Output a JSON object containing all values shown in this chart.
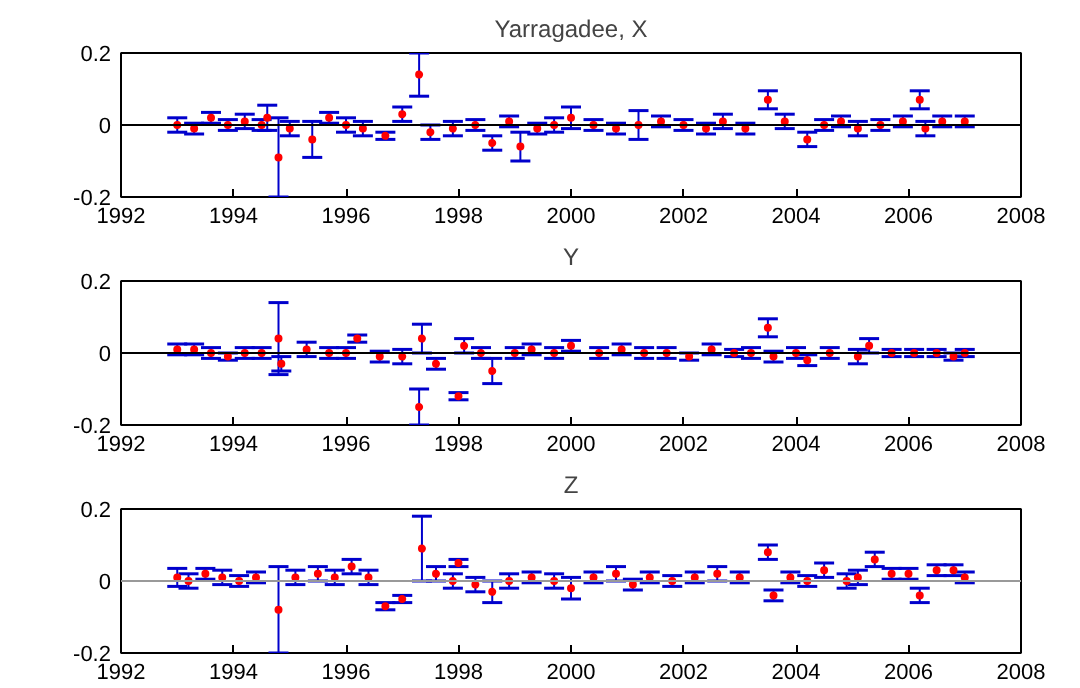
{
  "chart_data": [
    {
      "type": "scatter",
      "title": "Yarragadee, X",
      "marker": "circle",
      "xlim": [
        1992,
        2008
      ],
      "ylim": [
        -0.2,
        0.2
      ],
      "xticks": [
        1992,
        1994,
        1996,
        1998,
        2000,
        2002,
        2004,
        2006,
        2008
      ],
      "yticks": [
        -0.2,
        0,
        0.2
      ],
      "ref_lines": [
        {
          "axis": "y",
          "value": 0,
          "color": "#000000"
        }
      ],
      "x": [
        1993.0,
        1993.3,
        1993.6,
        1993.9,
        1994.2,
        1994.5,
        1994.6,
        1994.8,
        1995.0,
        1995.4,
        1995.7,
        1996.0,
        1996.3,
        1996.7,
        1997.0,
        1997.3,
        1997.5,
        1997.9,
        1998.3,
        1998.6,
        1998.9,
        1999.1,
        1999.4,
        1999.7,
        2000.0,
        2000.4,
        2000.8,
        2001.2,
        2001.6,
        2002.0,
        2002.4,
        2002.7,
        2003.1,
        2003.5,
        2003.8,
        2004.2,
        2004.5,
        2004.8,
        2005.1,
        2005.5,
        2005.9,
        2006.2,
        2006.3,
        2006.6,
        2007.0
      ],
      "series": [
        {
          "color": "#ff0000",
          "values": [
            0.0,
            -0.01,
            0.02,
            0.0,
            0.01,
            0.0,
            0.02,
            -0.09,
            -0.01,
            -0.04,
            0.02,
            0.0,
            -0.01,
            -0.03,
            0.03,
            0.14,
            -0.02,
            -0.01,
            0.0,
            -0.05,
            0.01,
            -0.06,
            -0.01,
            0.0,
            0.02,
            0.0,
            -0.01,
            0.0,
            0.01,
            0.0,
            -0.01,
            0.01,
            -0.01,
            0.07,
            0.01,
            -0.04,
            0.0,
            0.01,
            -0.01,
            0.0,
            0.01,
            0.07,
            -0.01,
            0.01,
            0.01
          ],
          "errors": [
            0.02,
            0.015,
            0.015,
            0.015,
            0.02,
            0.015,
            0.035,
            0.11,
            0.02,
            0.05,
            0.015,
            0.02,
            0.02,
            0.01,
            0.02,
            0.06,
            0.02,
            0.02,
            0.015,
            0.02,
            0.015,
            0.04,
            0.015,
            0.02,
            0.03,
            0.015,
            0.015,
            0.04,
            0.015,
            0.015,
            0.015,
            0.02,
            0.015,
            0.025,
            0.02,
            0.02,
            0.015,
            0.015,
            0.02,
            0.015,
            0.015,
            0.025,
            0.02,
            0.015,
            0.015
          ]
        }
      ]
    },
    {
      "type": "scatter",
      "title": "Y",
      "marker": "circle",
      "xlim": [
        1992,
        2008
      ],
      "ylim": [
        -0.2,
        0.2
      ],
      "xticks": [
        1992,
        1994,
        1996,
        1998,
        2000,
        2002,
        2004,
        2006,
        2008
      ],
      "yticks": [
        -0.2,
        0,
        0.2
      ],
      "ref_lines": [
        {
          "axis": "y",
          "value": 0,
          "color": "#000000"
        }
      ],
      "x": [
        1993.0,
        1993.3,
        1993.6,
        1993.9,
        1994.2,
        1994.5,
        1994.8,
        1994.85,
        1995.3,
        1995.7,
        1996.0,
        1996.2,
        1996.6,
        1997.0,
        1997.3,
        1997.35,
        1997.6,
        1998.0,
        1998.1,
        1998.4,
        1998.6,
        1999.0,
        1999.3,
        1999.7,
        2000.0,
        2000.5,
        2000.9,
        2001.3,
        2001.7,
        2002.1,
        2002.5,
        2002.9,
        2003.2,
        2003.5,
        2003.6,
        2004.0,
        2004.2,
        2004.6,
        2005.1,
        2005.3,
        2005.7,
        2006.1,
        2006.5,
        2006.8,
        2007.0
      ],
      "series": [
        {
          "color": "#ff0000",
          "values": [
            0.01,
            0.01,
            0.0,
            -0.01,
            0.0,
            0.0,
            0.04,
            -0.03,
            0.01,
            0.0,
            0.0,
            0.04,
            -0.01,
            -0.01,
            -0.15,
            0.04,
            -0.03,
            -0.12,
            0.02,
            0.0,
            -0.05,
            0.0,
            0.01,
            0.0,
            0.02,
            0.0,
            0.01,
            0.0,
            0.0,
            -0.01,
            0.01,
            0.0,
            0.0,
            0.07,
            -0.01,
            0.0,
            -0.02,
            0.0,
            -0.01,
            0.02,
            0.0,
            0.0,
            0.0,
            -0.01,
            0.0
          ],
          "errors": [
            0.015,
            0.015,
            0.015,
            0.01,
            0.015,
            0.015,
            0.1,
            0.02,
            0.02,
            0.015,
            0.015,
            0.01,
            0.015,
            0.02,
            0.05,
            0.04,
            0.015,
            0.01,
            0.02,
            0.015,
            0.035,
            0.015,
            0.015,
            0.015,
            0.015,
            0.015,
            0.015,
            0.015,
            0.015,
            0.01,
            0.015,
            0.01,
            0.015,
            0.025,
            0.015,
            0.015,
            0.015,
            0.015,
            0.02,
            0.02,
            0.01,
            0.01,
            0.01,
            0.01,
            0.01
          ]
        }
      ]
    },
    {
      "type": "scatter",
      "title": "Z",
      "marker": "circle",
      "xlim": [
        1992,
        2008
      ],
      "ylim": [
        -0.2,
        0.2
      ],
      "xticks": [
        1992,
        1994,
        1996,
        1998,
        2000,
        2002,
        2004,
        2006,
        2008
      ],
      "yticks": [
        -0.2,
        0,
        0.2
      ],
      "ref_lines": [
        {
          "axis": "y",
          "value": 0,
          "color": "#999999"
        }
      ],
      "x": [
        1993.0,
        1993.2,
        1993.5,
        1993.8,
        1994.1,
        1994.4,
        1994.8,
        1995.1,
        1995.5,
        1995.8,
        1996.1,
        1996.4,
        1996.7,
        1997.0,
        1997.35,
        1997.6,
        1997.9,
        1998.0,
        1998.3,
        1998.6,
        1998.9,
        1999.3,
        1999.7,
        2000.0,
        2000.4,
        2000.8,
        2001.1,
        2001.4,
        2001.8,
        2002.2,
        2002.6,
        2003.0,
        2003.5,
        2003.6,
        2003.9,
        2004.2,
        2004.5,
        2004.9,
        2005.1,
        2005.4,
        2005.7,
        2006.0,
        2006.2,
        2006.5,
        2006.8,
        2007.0
      ],
      "series": [
        {
          "color": "#ff0000",
          "values": [
            0.01,
            0.0,
            0.02,
            0.01,
            0.0,
            0.01,
            -0.08,
            0.01,
            0.02,
            0.01,
            0.04,
            0.01,
            -0.07,
            -0.05,
            0.09,
            0.02,
            0.0,
            0.05,
            -0.01,
            -0.03,
            0.0,
            0.01,
            0.0,
            -0.02,
            0.01,
            0.02,
            -0.01,
            0.01,
            0.0,
            0.01,
            0.02,
            0.01,
            0.08,
            -0.04,
            0.01,
            0.0,
            0.03,
            0.0,
            0.01,
            0.06,
            0.02,
            0.02,
            -0.04,
            0.03,
            0.03,
            0.01
          ],
          "errors": [
            0.025,
            0.02,
            0.015,
            0.02,
            0.015,
            0.015,
            0.12,
            0.02,
            0.02,
            0.02,
            0.02,
            0.02,
            0.01,
            0.01,
            0.09,
            0.02,
            0.02,
            0.01,
            0.02,
            0.03,
            0.02,
            0.015,
            0.02,
            0.03,
            0.015,
            0.02,
            0.015,
            0.015,
            0.015,
            0.015,
            0.02,
            0.015,
            0.02,
            0.015,
            0.015,
            0.015,
            0.02,
            0.02,
            0.02,
            0.02,
            0.015,
            0.015,
            0.02,
            0.015,
            0.015,
            0.015
          ]
        }
      ]
    }
  ]
}
